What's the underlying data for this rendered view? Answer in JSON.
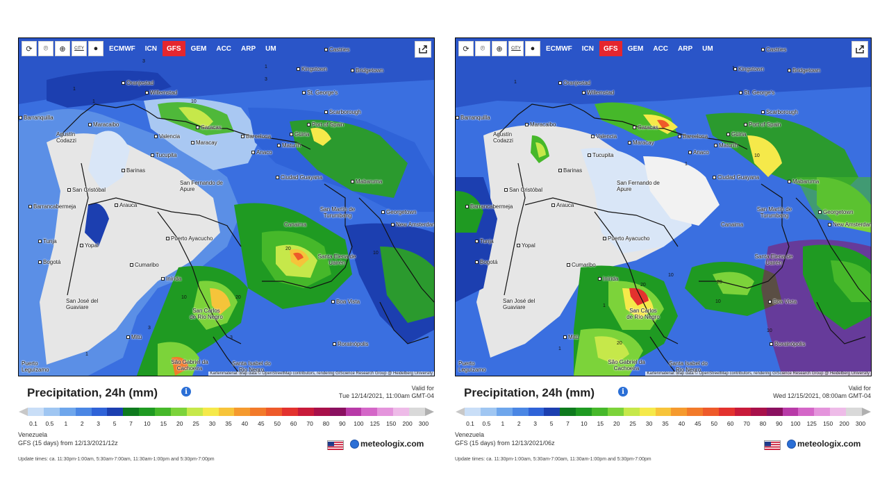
{
  "panels": [
    {
      "toolbar": {
        "city_label": "CITY",
        "models": [
          "ECMWF",
          "ICN",
          "GFS",
          "GEM",
          "ACC",
          "ARP",
          "UM"
        ],
        "active_model": "GFS"
      },
      "attribution": "Kartenmaterial: Map data © OpenStreetMap contributors, rendering GIScience Research Group @ Heidelberg University",
      "cities": [
        "Castries",
        "Kingstown",
        "Bridgetown",
        "Oranjestad",
        "Willemstad",
        "St. George's",
        "Barranquilla",
        "Scarborough",
        "Maracaibo",
        "Caracas",
        "Barcelona",
        "Port of Spain",
        "Güiria",
        "Agustín Codazzi",
        "Valencia",
        "Maracay",
        "Maturín",
        "Tucupita",
        "Anaco",
        "Barinas",
        "San Cristóbal",
        "San Fernando de Apure",
        "Ciudad Guayana",
        "Mabaruma",
        "Barrancabermeja",
        "Arauca",
        "San Martín de Turumbang",
        "Georgetown",
        "New Amsterdam",
        "Canaima",
        "Tunja",
        "Yopal",
        "Puerto Ayacucho",
        "Bogotá",
        "Santa Elena de Uairén",
        "Cumaribo",
        "Inírida",
        "Boa Vista",
        "San José del Guaviare",
        "San Carlos de Río Negro",
        "Mitú",
        "Rorainópolis",
        "Puerto Leguízamo",
        "São Gabriel da Cachoeira",
        "Santa Isabel do Rio Negro"
      ],
      "contour_labels": [
        "3",
        "1",
        "10",
        "3",
        "1",
        "1",
        "20",
        "10",
        "20",
        "10",
        "3",
        "3",
        "1"
      ],
      "title": "Precipitation, 24h (mm)",
      "valid_for": "Valid for",
      "valid_time": "Tue 12/14/2021, 11:00am GMT-04",
      "region": "Venezuela",
      "model_run": "GFS (15 days) from 12/13/2021/12z",
      "brand": "meteologix.com",
      "update_times": "Update times: ca. 11:30pm-1:00am, 5:30am-7:00am, 11:30am-1:00pm and 5:30pm-7:00pm"
    },
    {
      "toolbar": {
        "city_label": "CITY",
        "models": [
          "ECMWF",
          "ICN",
          "GFS",
          "GEM",
          "ACC",
          "ARP",
          "UM"
        ],
        "active_model": "GFS"
      },
      "attribution": "Kartenmaterial: Map data © OpenStreetMap contributors, rendering GIScience Research Group @ Heidelberg University",
      "cities": [
        "Castries",
        "Kingstown",
        "Bridgetown",
        "Oranjestad",
        "Willemstad",
        "St. George's",
        "Barranquilla",
        "Scarborough",
        "Maracaibo",
        "Caracas",
        "Barcelona",
        "Port of Spain",
        "Güiria",
        "Agustín Codazzi",
        "Valencia",
        "Maracay",
        "Maturín",
        "Tucupita",
        "Anaco",
        "Barinas",
        "San Cristóbal",
        "San Fernando de Apure",
        "Ciudad Guayana",
        "Mabaruma",
        "Barrancabermeja",
        "Arauca",
        "San Martín de Turumbang",
        "Georgetown",
        "New Amsterdam",
        "Canaima",
        "Tunja",
        "Yopal",
        "Puerto Ayacucho",
        "Bogotá",
        "Santa Elena de Uairén",
        "Cumaribo",
        "Inírida",
        "Boa Vista",
        "San José del Guaviare",
        "San Carlos de Río Negro",
        "Mitú",
        "Rorainópolis",
        "Puerto Leguízamo",
        "São Gabriel da Cachoeira",
        "Santa Isabel do Rio Negro"
      ],
      "contour_labels": [
        "1",
        "1",
        "1",
        "10",
        "20",
        "10",
        "20",
        "10",
        "10",
        "1",
        "20",
        "1"
      ],
      "title": "Precipitation, 24h (mm)",
      "valid_for": "Valid for",
      "valid_time": "Wed 12/15/2021, 08:00am GMT-04",
      "region": "Venezuela",
      "model_run": "GFS (15 days) from 12/13/2021/06z",
      "brand": "meteologix.com",
      "update_times": "Update times: ca. 11:30pm-1:00am, 5:30am-7:00am, 11:30am-1:00pm and 5:30pm-7:00pm"
    }
  ],
  "legend": {
    "ticks": [
      "0.1",
      "0.5",
      "1",
      "2",
      "3",
      "5",
      "7",
      "10",
      "15",
      "20",
      "25",
      "30",
      "35",
      "40",
      "45",
      "50",
      "60",
      "70",
      "80",
      "90",
      "100",
      "125",
      "150",
      "200",
      "300"
    ],
    "colors": [
      "#c9def7",
      "#9fc6f2",
      "#6ea6ec",
      "#4a86e4",
      "#2f63d8",
      "#1c3fb0",
      "#0e7a1e",
      "#1f9a22",
      "#46b82a",
      "#7cd33a",
      "#c6e84a",
      "#f5e94a",
      "#f7c43a",
      "#f59a2e",
      "#f27a2a",
      "#ee5a2a",
      "#e3322e",
      "#c81a3a",
      "#a8104a",
      "#8a1060",
      "#b83aa8",
      "#d466c8",
      "#e494dc",
      "#eebbe8",
      "#d9d9d9"
    ]
  },
  "icons": {
    "flag": "us-flag-icon",
    "brand": "meteologix-logo-icon",
    "info": "info-icon",
    "share": "share-icon"
  }
}
